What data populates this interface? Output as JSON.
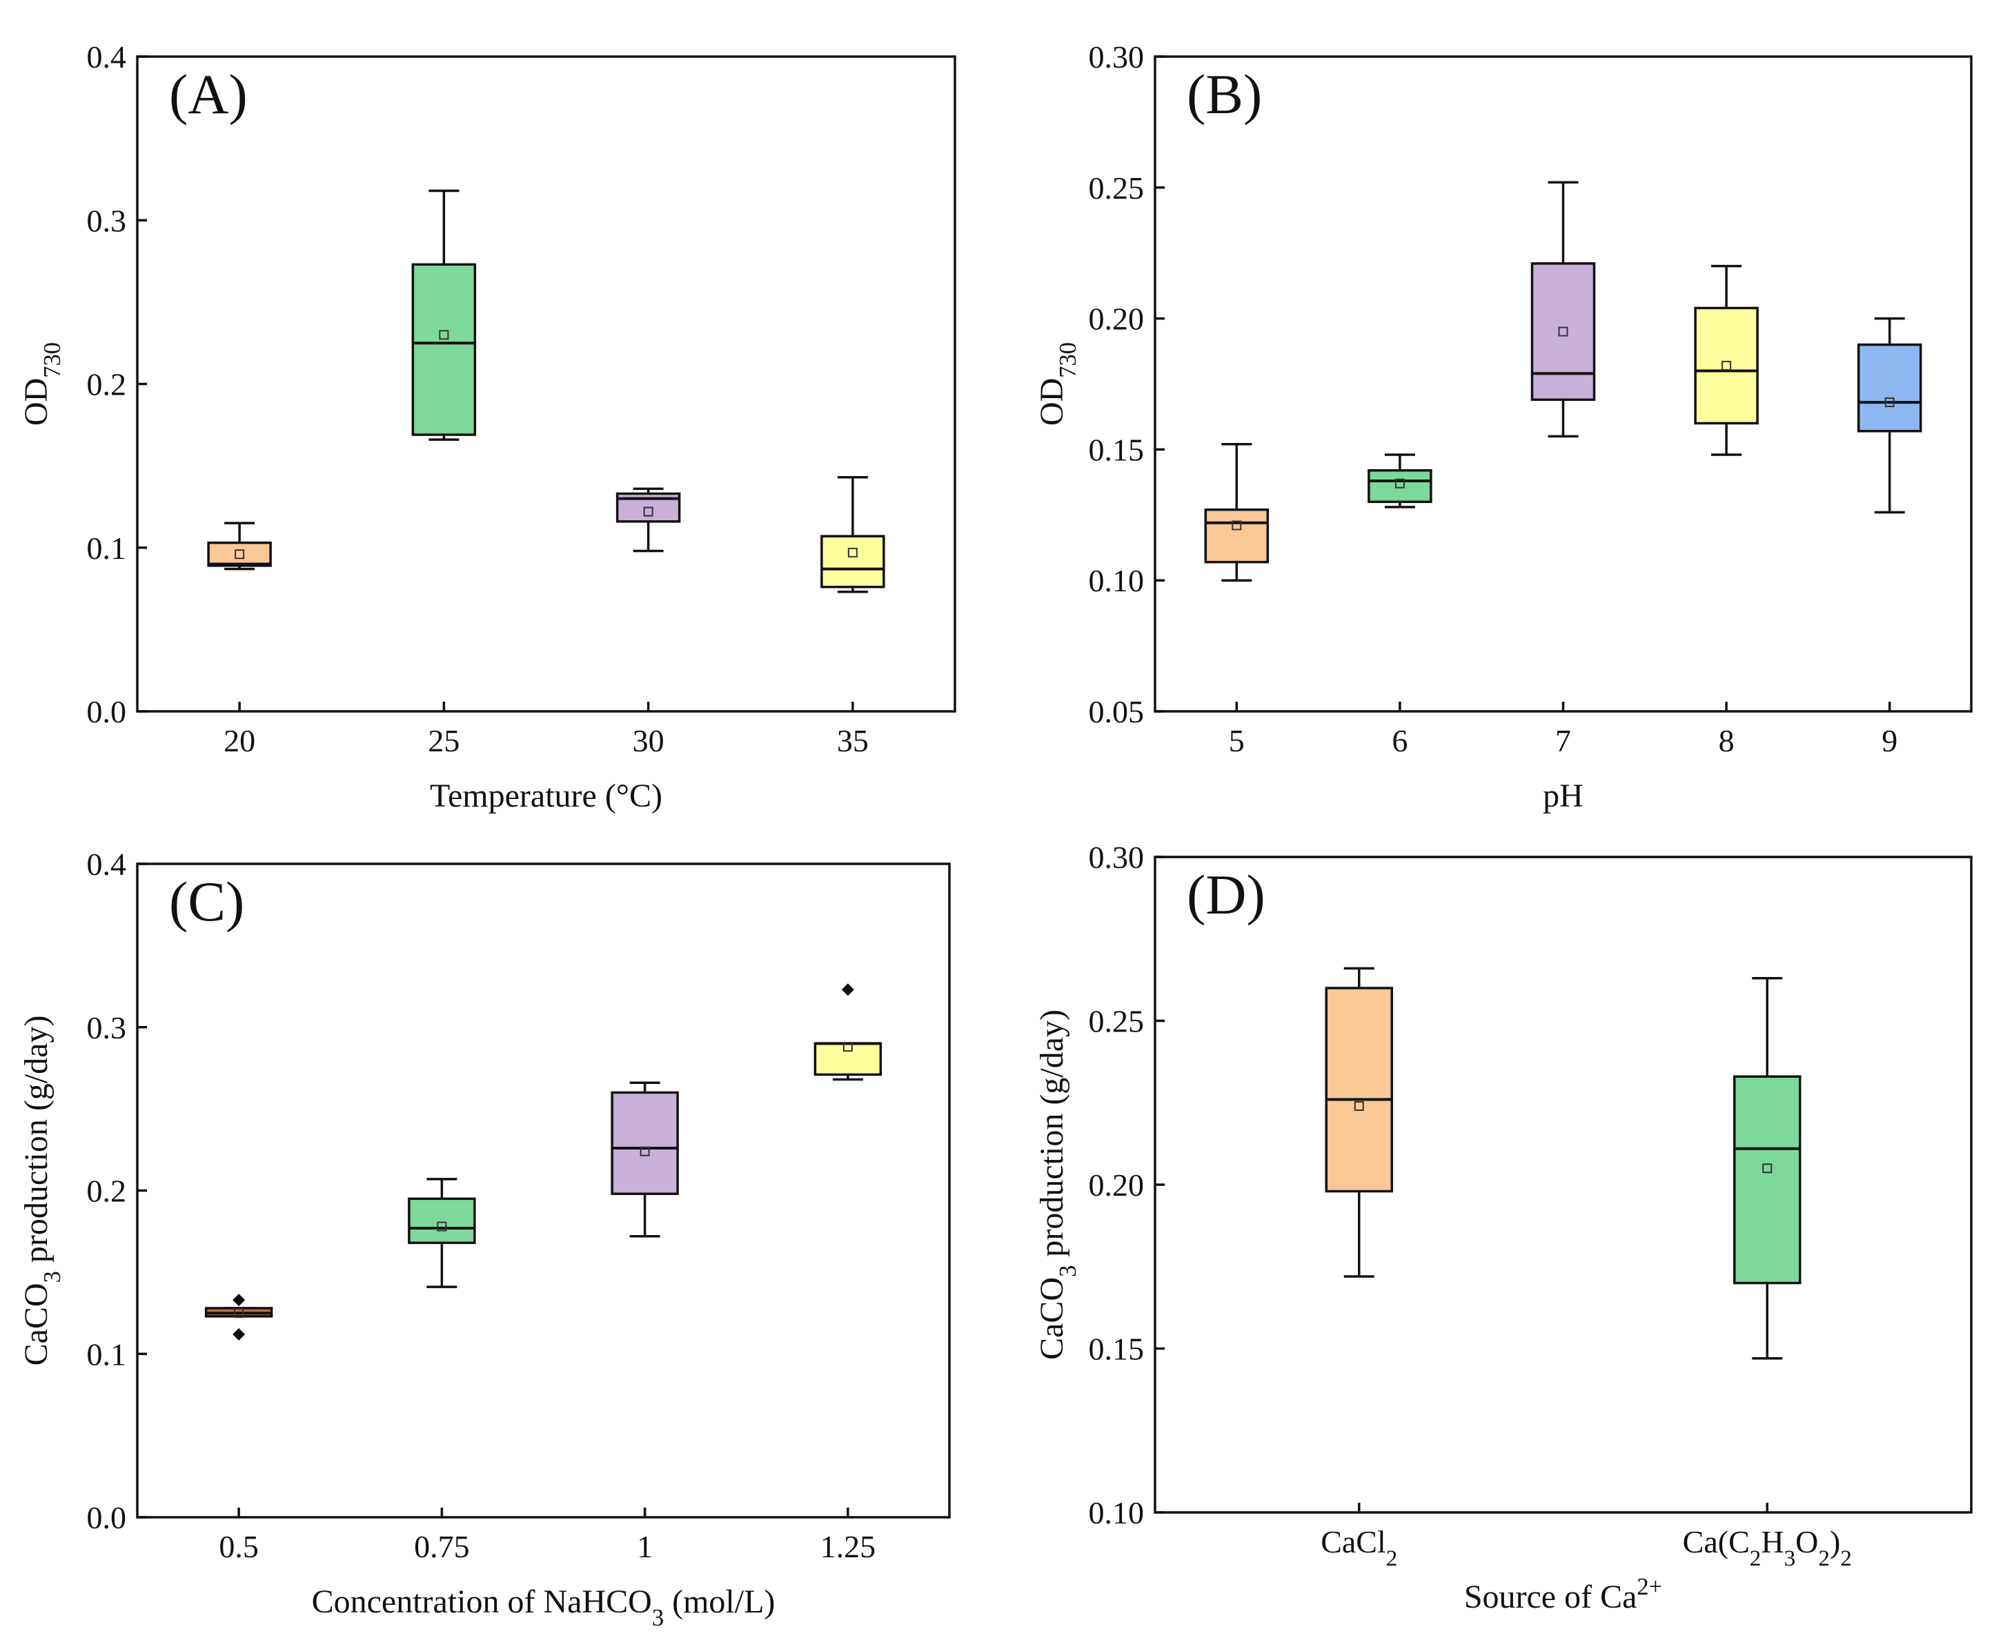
{
  "chart_data": [
    {
      "id": "A",
      "type": "box",
      "panel_label": "(A)",
      "xlabel": "Temperature (°C)",
      "ylabel": {
        "base": "OD",
        "sub": "730"
      },
      "ylim": [
        0.0,
        0.4
      ],
      "yticks": [
        "0.0",
        "0.1",
        "0.2",
        "0.3",
        "0.4"
      ],
      "categories": [
        {
          "label": "20"
        },
        {
          "label": "25"
        },
        {
          "label": "30"
        },
        {
          "label": "35"
        }
      ],
      "boxes": [
        {
          "min": 0.087,
          "q1": 0.089,
          "median": 0.09,
          "q3": 0.103,
          "max": 0.115,
          "mean": 0.096,
          "color": "#fcc896",
          "outliers": []
        },
        {
          "min": 0.166,
          "q1": 0.169,
          "median": 0.225,
          "q3": 0.273,
          "max": 0.318,
          "mean": 0.23,
          "color": "#7dd89b",
          "outliers": []
        },
        {
          "min": 0.098,
          "q1": 0.116,
          "median": 0.13,
          "q3": 0.133,
          "max": 0.136,
          "mean": 0.122,
          "color": "#c9b0d9",
          "outliers": []
        },
        {
          "min": 0.073,
          "q1": 0.076,
          "median": 0.087,
          "q3": 0.107,
          "max": 0.143,
          "mean": 0.097,
          "color": "#ffff9e",
          "outliers": []
        }
      ]
    },
    {
      "id": "B",
      "type": "box",
      "panel_label": "(B)",
      "xlabel": "pH",
      "ylabel": {
        "base": "OD",
        "sub": "730"
      },
      "ylim": [
        0.05,
        0.3
      ],
      "yticks": [
        "0.05",
        "0.10",
        "0.15",
        "0.20",
        "0.25",
        "0.30"
      ],
      "categories": [
        {
          "label": "5"
        },
        {
          "label": "6"
        },
        {
          "label": "7"
        },
        {
          "label": "8"
        },
        {
          "label": "9"
        }
      ],
      "boxes": [
        {
          "min": 0.1,
          "q1": 0.107,
          "median": 0.122,
          "q3": 0.127,
          "max": 0.152,
          "mean": 0.121,
          "color": "#fcc896",
          "outliers": []
        },
        {
          "min": 0.128,
          "q1": 0.13,
          "median": 0.138,
          "q3": 0.142,
          "max": 0.148,
          "mean": 0.137,
          "color": "#7dd89b",
          "outliers": []
        },
        {
          "min": 0.155,
          "q1": 0.169,
          "median": 0.179,
          "q3": 0.221,
          "max": 0.252,
          "mean": 0.195,
          "color": "#c9b0d9",
          "outliers": []
        },
        {
          "min": 0.148,
          "q1": 0.16,
          "median": 0.18,
          "q3": 0.204,
          "max": 0.22,
          "mean": 0.182,
          "color": "#ffff9e",
          "outliers": []
        },
        {
          "min": 0.126,
          "q1": 0.157,
          "median": 0.168,
          "q3": 0.19,
          "max": 0.2,
          "mean": 0.168,
          "color": "#8db8f2",
          "outliers": []
        }
      ]
    },
    {
      "id": "C",
      "type": "box",
      "panel_label": "(C)",
      "xlabel": {
        "pre": "Concentration of NaHCO",
        "sub": "3",
        "post": " (mol/L)"
      },
      "ylabel": {
        "pre": "CaCO",
        "sub": "3",
        "post": " production (g/day)"
      },
      "ylim": [
        0.0,
        0.4
      ],
      "yticks": [
        "0.0",
        "0.1",
        "0.2",
        "0.3",
        "0.4"
      ],
      "categories": [
        {
          "label": "0.5"
        },
        {
          "label": "0.75"
        },
        {
          "label": "1"
        },
        {
          "label": "1.25"
        }
      ],
      "boxes": [
        {
          "min": 0.123,
          "q1": 0.123,
          "median": 0.125,
          "q3": 0.128,
          "max": 0.128,
          "mean": 0.125,
          "color": "#c06a4a",
          "outliers": [
            0.133,
            0.112
          ]
        },
        {
          "min": 0.141,
          "q1": 0.168,
          "median": 0.177,
          "q3": 0.195,
          "max": 0.207,
          "mean": 0.178,
          "color": "#7dd89b",
          "outliers": []
        },
        {
          "min": 0.172,
          "q1": 0.198,
          "median": 0.226,
          "q3": 0.26,
          "max": 0.266,
          "mean": 0.224,
          "color": "#c9b0d9",
          "outliers": []
        },
        {
          "min": 0.268,
          "q1": 0.271,
          "median": 0.29,
          "q3": 0.29,
          "max": 0.29,
          "mean": 0.288,
          "color": "#ffff9e",
          "outliers": [
            0.323
          ]
        }
      ]
    },
    {
      "id": "D",
      "type": "box",
      "panel_label": "(D)",
      "xlabel": {
        "pre": "Source of Ca",
        "sup": "2+",
        "post": ""
      },
      "ylabel": {
        "pre": "CaCO",
        "sub": "3",
        "post": " production (g/day)"
      },
      "ylim": [
        0.1,
        0.3
      ],
      "yticks": [
        "0.10",
        "0.15",
        "0.20",
        "0.25",
        "0.30"
      ],
      "categories": [
        {
          "parts": [
            [
              "CaCl",
              ""
            ],
            [
              "2",
              "sub"
            ]
          ]
        },
        {
          "parts": [
            [
              "Ca(C",
              ""
            ],
            [
              "2",
              "sub"
            ],
            [
              "H",
              ""
            ],
            [
              "3",
              "sub"
            ],
            [
              "O",
              ""
            ],
            [
              "2",
              "sub"
            ],
            [
              ")",
              ""
            ],
            [
              "2",
              "sub"
            ]
          ]
        }
      ],
      "boxes": [
        {
          "min": 0.172,
          "q1": 0.198,
          "median": 0.226,
          "q3": 0.26,
          "max": 0.266,
          "mean": 0.224,
          "color": "#fcc896",
          "outliers": []
        },
        {
          "min": 0.147,
          "q1": 0.17,
          "median": 0.211,
          "q3": 0.233,
          "max": 0.263,
          "mean": 0.205,
          "color": "#7dd89b",
          "outliers": []
        }
      ]
    }
  ]
}
